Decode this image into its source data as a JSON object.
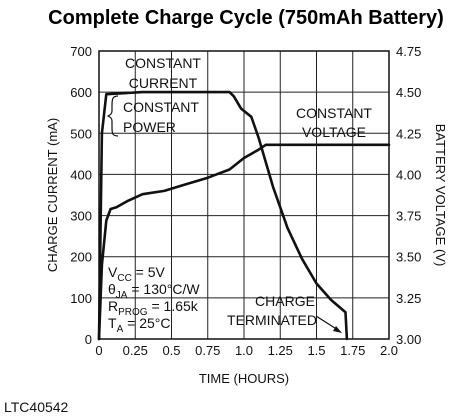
{
  "chart_data": {
    "type": "line",
    "title": "Complete Charge Cycle (750mAh Battery)",
    "xlabel": "TIME (HOURS)",
    "ylabel": "CHARGE CURRENT (mA)",
    "y2label": "BATTERY VOLTAGE (V)",
    "xlim": [
      0,
      2.0
    ],
    "ylim": [
      0,
      700
    ],
    "y2lim": [
      3.0,
      4.75
    ],
    "x_ticks": [
      "0",
      "0.25",
      "0.5",
      "0.75",
      "1.0",
      "1.25",
      "1.5",
      "1.75",
      "2.0"
    ],
    "y_ticks": [
      "0",
      "100",
      "200",
      "300",
      "400",
      "500",
      "600",
      "700"
    ],
    "y2_ticks": [
      "3.00",
      "3.25",
      "3.50",
      "3.75",
      "4.00",
      "4.25",
      "4.50",
      "4.75"
    ],
    "grid": true,
    "series": [
      {
        "axis": "left",
        "points": [
          [
            0,
            0
          ],
          [
            0.02,
            500
          ],
          [
            0.05,
            595
          ],
          [
            0.3,
            600
          ],
          [
            0.6,
            600
          ],
          [
            0.9,
            600
          ],
          [
            0.93,
            590
          ],
          [
            0.98,
            560
          ],
          [
            1.05,
            540
          ],
          [
            1.1,
            490
          ],
          [
            1.2,
            370
          ],
          [
            1.3,
            270
          ],
          [
            1.4,
            195
          ],
          [
            1.5,
            135
          ],
          [
            1.6,
            95
          ],
          [
            1.7,
            65
          ],
          [
            1.71,
            0
          ]
        ]
      },
      {
        "axis": "right",
        "points": [
          [
            0,
            3.0
          ],
          [
            0.02,
            3.45
          ],
          [
            0.05,
            3.72
          ],
          [
            0.08,
            3.79
          ],
          [
            0.12,
            3.8
          ],
          [
            0.2,
            3.84
          ],
          [
            0.3,
            3.88
          ],
          [
            0.45,
            3.9
          ],
          [
            0.6,
            3.94
          ],
          [
            0.75,
            3.98
          ],
          [
            0.9,
            4.03
          ],
          [
            1.0,
            4.1
          ],
          [
            1.1,
            4.15
          ],
          [
            1.15,
            4.18
          ],
          [
            1.5,
            4.18
          ],
          [
            2.0,
            4.18
          ]
        ]
      }
    ],
    "annotations": {
      "constant_current": [
        "CONSTANT",
        "CURRENT"
      ],
      "constant_power": [
        "CONSTANT",
        "POWER"
      ],
      "constant_voltage": [
        "CONSTANT",
        "VOLTAGE"
      ],
      "charge_terminated": [
        "CHARGE",
        "TERMINATED"
      ]
    },
    "conditions": [
      {
        "main": "V",
        "sub": "CC",
        "rest": " = 5V"
      },
      {
        "main": "θ",
        "sub": "JA",
        "rest": " = 130°C/W"
      },
      {
        "main": "R",
        "sub": "PROG",
        "rest": " = 1.65k"
      },
      {
        "main": "T",
        "sub": "A",
        "rest": " = 25°C"
      }
    ]
  },
  "figure_id": "LTC40542"
}
